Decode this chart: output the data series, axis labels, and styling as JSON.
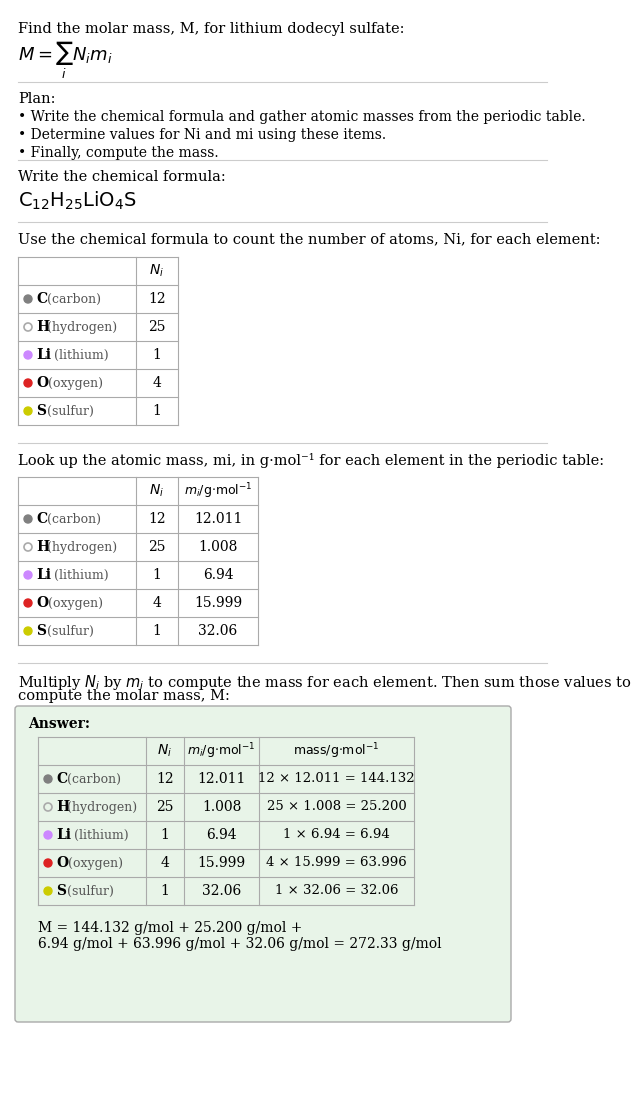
{
  "title": "Find the molar mass, M, for lithium dodecyl sulfate:",
  "plan_title": "Plan:",
  "plan_bullets": [
    "• Write the chemical formula and gather atomic masses from the periodic table.",
    "• Determine values for Ni and mi using these items.",
    "• Finally, compute the mass."
  ],
  "chemical_formula_label": "Write the chemical formula:",
  "table1_label": "Use the chemical formula to count the number of atoms, Ni, for each element:",
  "table2_label": "Look up the atomic mass, mi, in g·mol⁻¹ for each element in the periodic table:",
  "table3_label": "Multiply Ni by mi to compute the mass for each element. Then sum those values to\ncompute the molar mass, M:",
  "elements": [
    "C (carbon)",
    "H (hydrogen)",
    "Li (lithium)",
    "O (oxygen)",
    "S (sulfur)"
  ],
  "element_symbols": [
    "C",
    "H",
    "Li",
    "O",
    "S"
  ],
  "element_colors": [
    "#808080",
    "#aaaaaa",
    "#cc88ff",
    "#dd2222",
    "#cccc00"
  ],
  "element_hollow": [
    false,
    true,
    false,
    false,
    false
  ],
  "Ni": [
    12,
    25,
    1,
    4,
    1
  ],
  "mi": [
    "12.011",
    "1.008",
    "6.94",
    "15.999",
    "32.06"
  ],
  "mass_expr": [
    "12 × 12.011 = 144.132",
    "25 × 1.008 = 25.200",
    "1 × 6.94 = 6.94",
    "4 × 15.999 = 63.996",
    "1 × 32.06 = 32.06"
  ],
  "answer_box_color": "#e8f4e8",
  "answer_box_edge": "#aaaaaa",
  "final_eq_line1": "M = 144.132 g/mol + 25.200 g/mol +",
  "final_eq_line2": "6.94 g/mol + 63.996 g/mol + 32.06 g/mol = 272.33 g/mol",
  "bg_color": "#ffffff",
  "text_color": "#000000",
  "separator_color": "#cccccc"
}
